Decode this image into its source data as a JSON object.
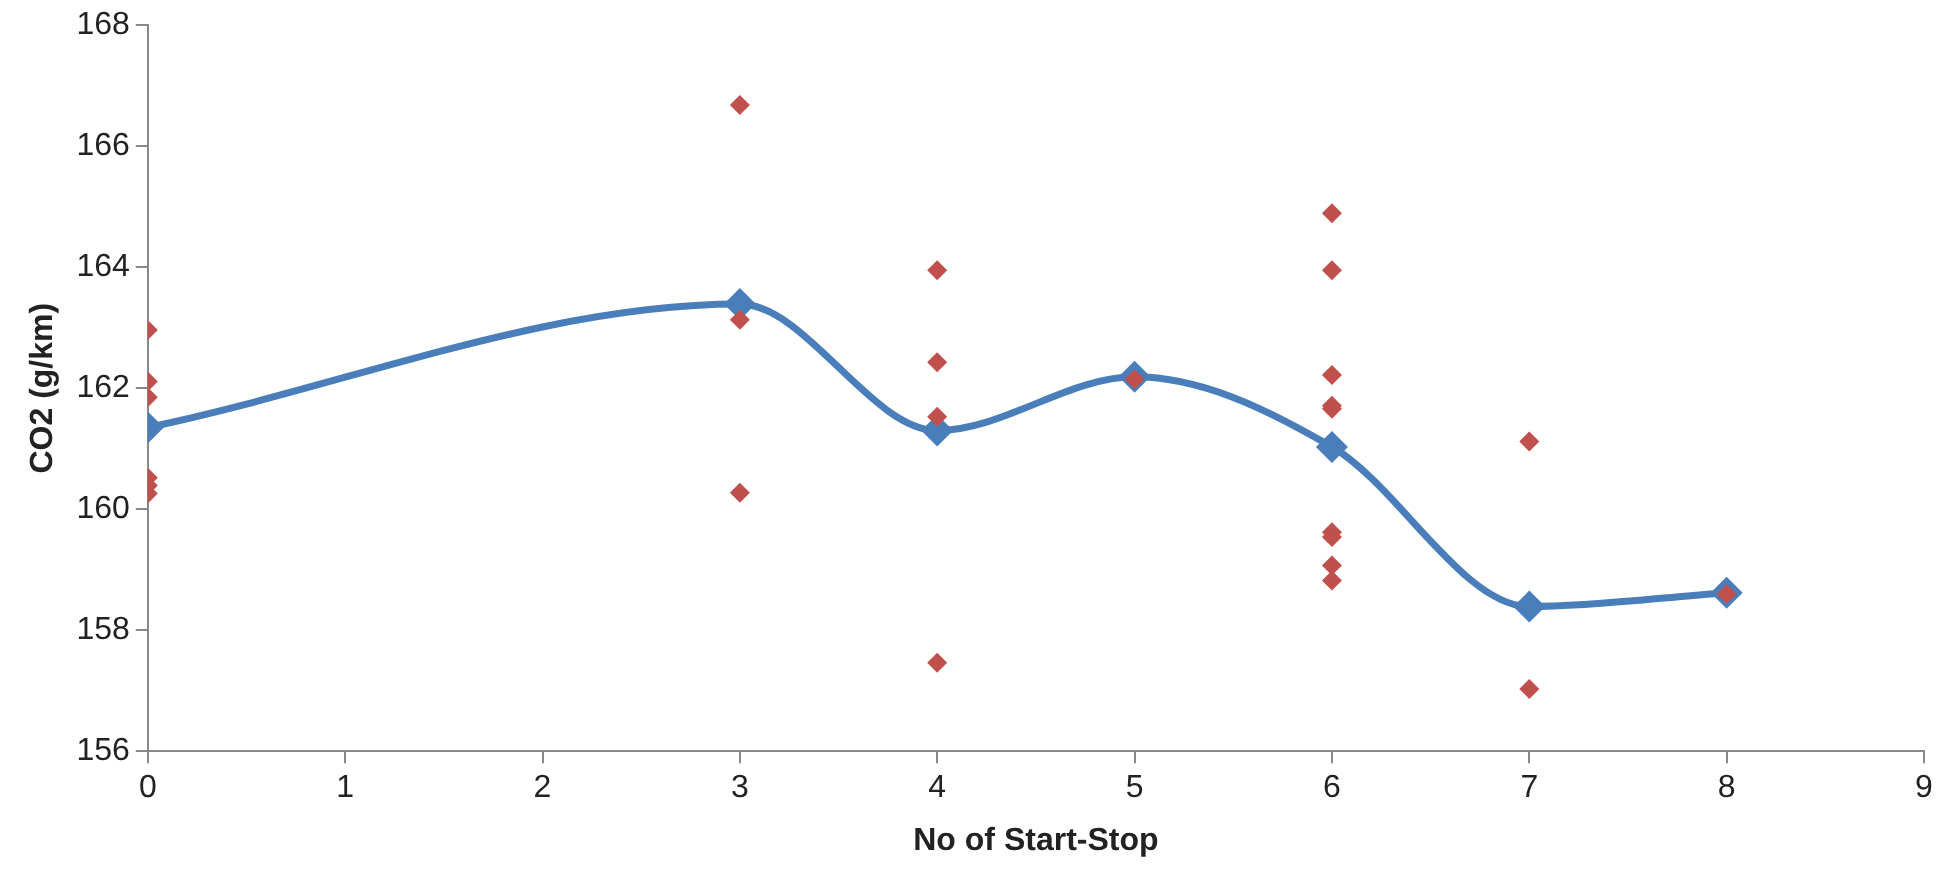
{
  "chart_data": {
    "type": "line",
    "xlabel": "No of Start-Stop",
    "ylabel": "CO2 (g/km)",
    "xlim": [
      0,
      9
    ],
    "xticks": [
      0,
      1,
      2,
      3,
      4,
      5,
      6,
      7,
      8,
      9
    ],
    "ylim": [
      156,
      168
    ],
    "yticks": [
      156,
      158,
      160,
      162,
      164,
      166,
      168
    ],
    "grid": false,
    "legend": false,
    "marker": "diamond",
    "series": [
      {
        "type": "line",
        "color": "#4a7ebb",
        "x": [
          0,
          3,
          4,
          5,
          6,
          7,
          8
        ],
        "values": [
          161.35,
          163.39,
          161.3,
          162.19,
          161.03,
          158.39,
          158.62
        ]
      },
      {
        "type": "scatter",
        "color": "#c0504d",
        "x": [
          0,
          0,
          0,
          0,
          0,
          0,
          3,
          3,
          3,
          4,
          4,
          4,
          4,
          5,
          6,
          6,
          6,
          6,
          6,
          6,
          6,
          6,
          6,
          7,
          7,
          8
        ],
        "values": [
          162.96,
          162.11,
          161.85,
          160.52,
          160.39,
          160.26,
          166.68,
          163.13,
          160.27,
          163.95,
          162.43,
          161.53,
          157.46,
          162.15,
          164.89,
          163.95,
          162.22,
          161.71,
          161.66,
          159.62,
          159.54,
          159.07,
          158.82,
          161.12,
          157.03,
          158.6
        ]
      }
    ]
  }
}
